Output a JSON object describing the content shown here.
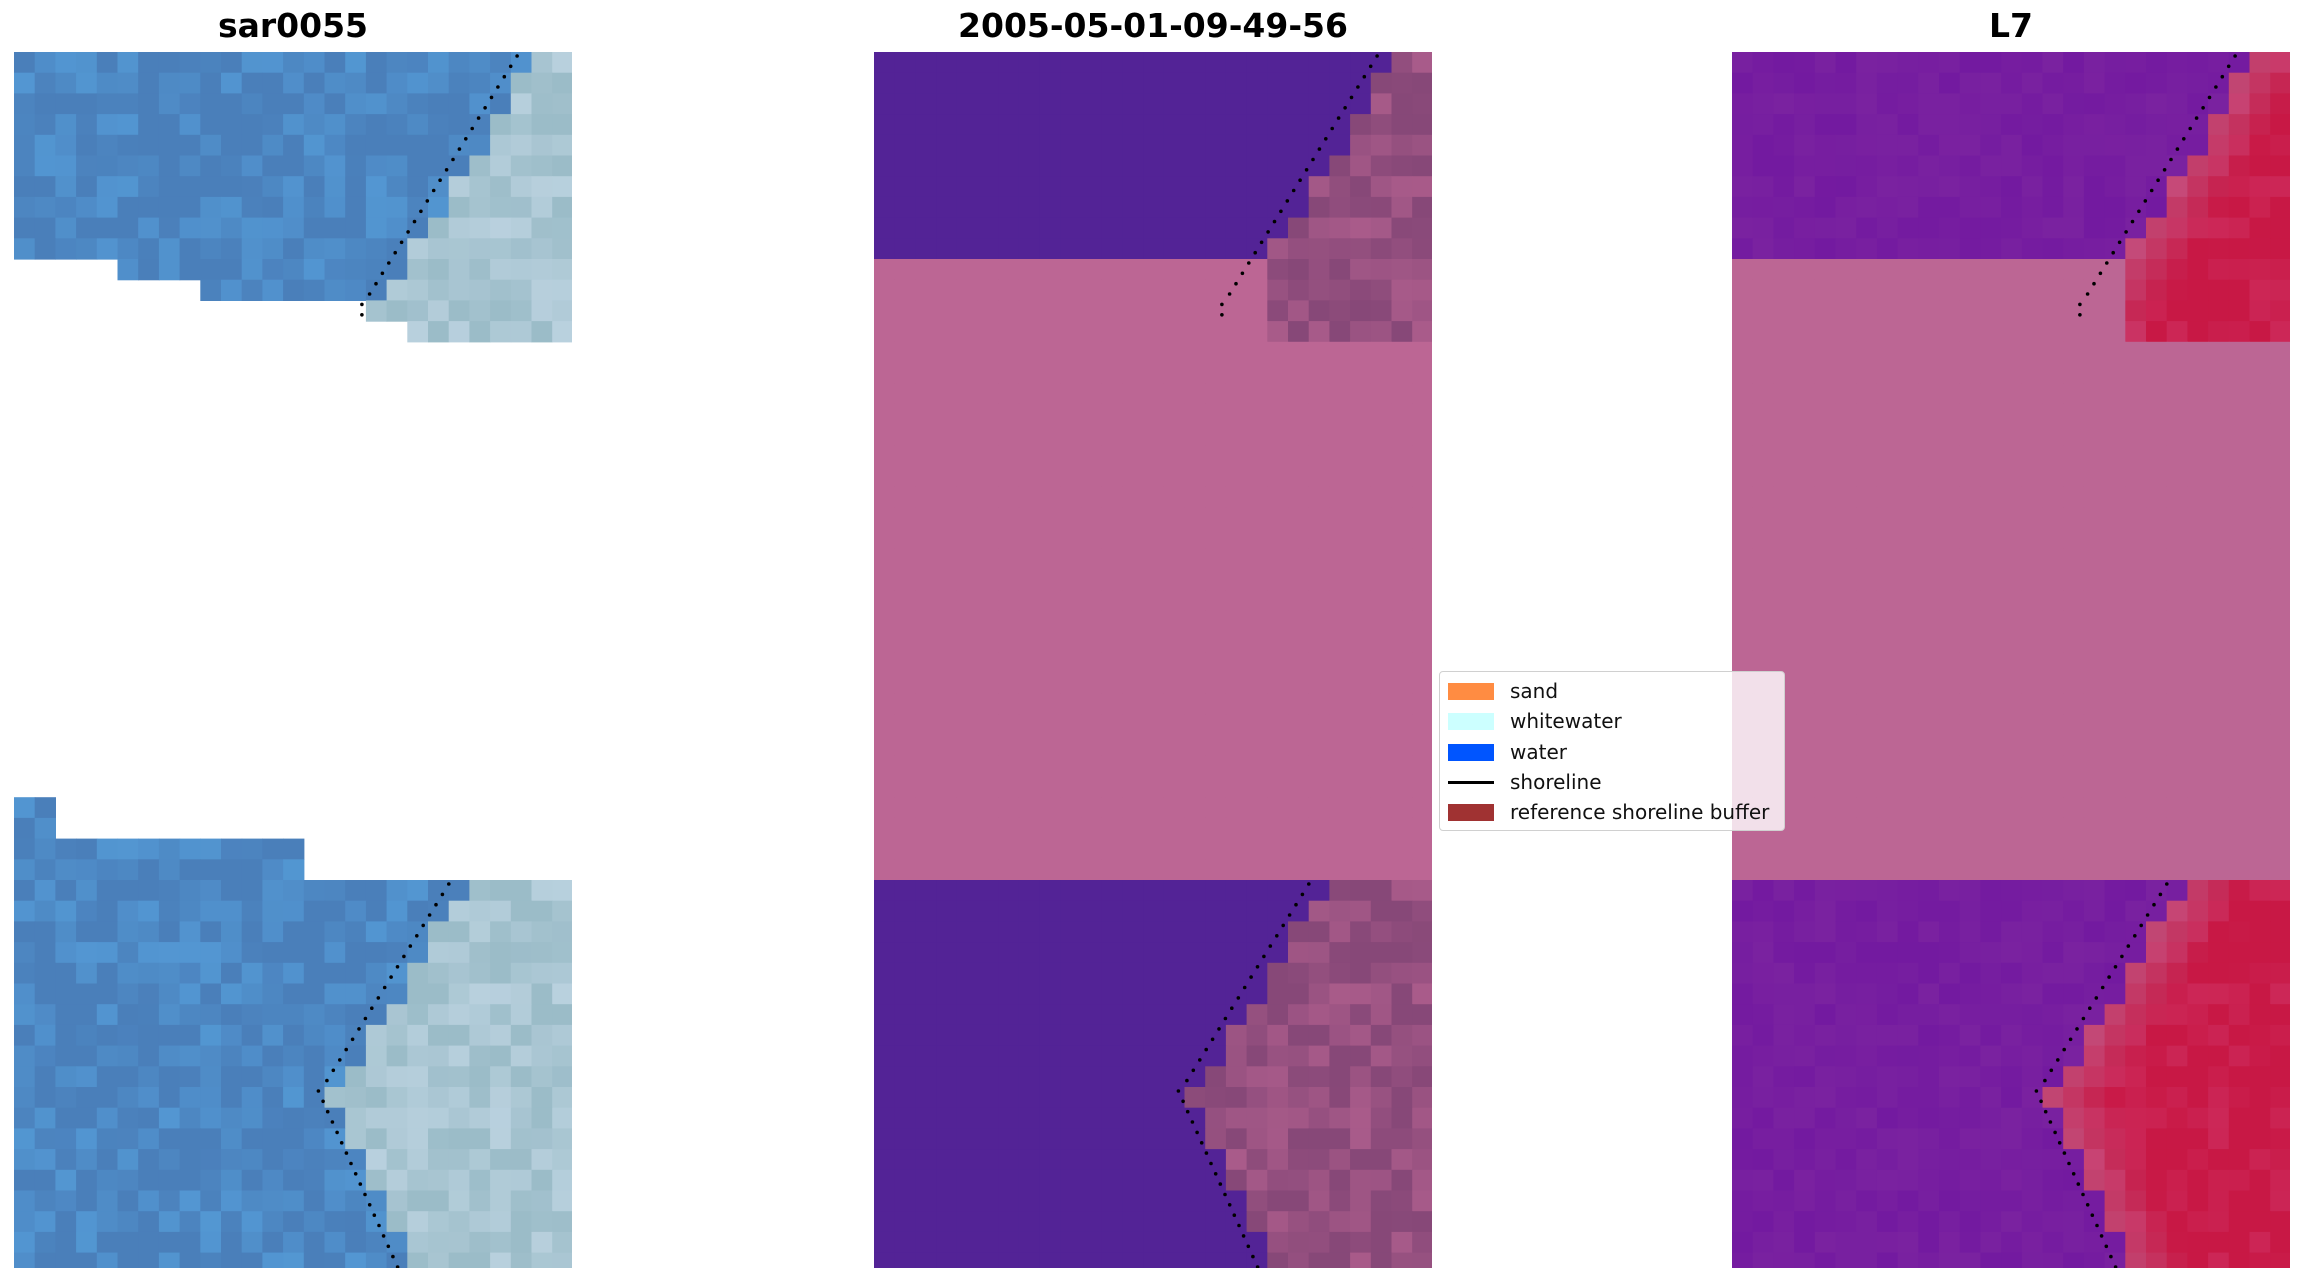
{
  "panels": [
    {
      "title": "sar0055",
      "kind": "rgb"
    },
    {
      "title": "2005-05-01-09-49-56",
      "kind": "classified"
    },
    {
      "title": "L7",
      "kind": "mndwi"
    }
  ],
  "legend": {
    "entries": [
      {
        "label": "sand",
        "color": "#ff8c42",
        "type": "patch"
      },
      {
        "label": "whitewater",
        "color": "#ccffff",
        "type": "patch"
      },
      {
        "label": "water",
        "color": "#0055ff",
        "type": "patch"
      },
      {
        "label": "shoreline",
        "color": "#000000",
        "type": "line"
      },
      {
        "label": "reference shoreline buffer",
        "color": "#a03232",
        "type": "patch"
      }
    ]
  },
  "colors": {
    "nodata_mask": "#bc6694",
    "water_class": "#532396",
    "land_class": "#874878",
    "rgb_water": "#4a7fba",
    "rgb_land": "#9bbcc8",
    "index_water": "#7a22a0",
    "index_land": "#c81845"
  }
}
